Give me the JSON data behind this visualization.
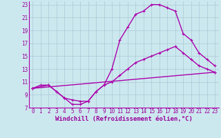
{
  "xlabel": "Windchill (Refroidissement éolien,°C)",
  "bg_color": "#cce8ef",
  "grid_color": "#aac8d4",
  "line_color": "#aa00aa",
  "xlim": [
    -0.5,
    23.5
  ],
  "ylim": [
    7,
    23.5
  ],
  "yticks": [
    7,
    9,
    11,
    13,
    15,
    17,
    19,
    21,
    23
  ],
  "xticks": [
    0,
    1,
    2,
    3,
    4,
    5,
    6,
    7,
    8,
    9,
    10,
    11,
    12,
    13,
    14,
    15,
    16,
    17,
    18,
    19,
    20,
    21,
    22,
    23
  ],
  "series1_x": [
    0,
    1,
    2,
    3,
    4,
    5,
    6,
    7,
    8,
    9,
    10,
    11,
    12,
    13,
    14,
    15,
    16,
    17,
    18,
    19,
    20,
    21,
    22,
    23
  ],
  "series1_y": [
    10.0,
    10.5,
    10.5,
    9.5,
    8.5,
    7.5,
    7.5,
    8.0,
    9.5,
    10.5,
    13.0,
    17.5,
    19.5,
    21.5,
    22.0,
    23.0,
    23.0,
    22.5,
    22.0,
    18.5,
    17.5,
    15.5,
    14.5,
    13.5
  ],
  "series2_x": [
    0,
    2,
    3,
    4,
    5,
    6,
    7,
    8,
    9,
    10,
    11,
    12,
    13,
    14,
    15,
    16,
    17,
    18,
    19,
    20,
    21,
    22,
    23
  ],
  "series2_y": [
    10.0,
    10.5,
    9.5,
    8.5,
    8.2,
    8.0,
    8.0,
    9.5,
    10.5,
    11.0,
    12.0,
    13.0,
    14.0,
    14.5,
    15.0,
    15.5,
    16.0,
    16.5,
    15.5,
    14.5,
    13.5,
    13.0,
    12.5
  ],
  "series3_x": [
    0,
    23
  ],
  "series3_y": [
    10.0,
    12.5
  ],
  "marker_size": 3.0,
  "line_width": 1.0,
  "font_color": "#990099",
  "tick_fontsize": 5.5,
  "xlabel_fontsize": 6.5
}
